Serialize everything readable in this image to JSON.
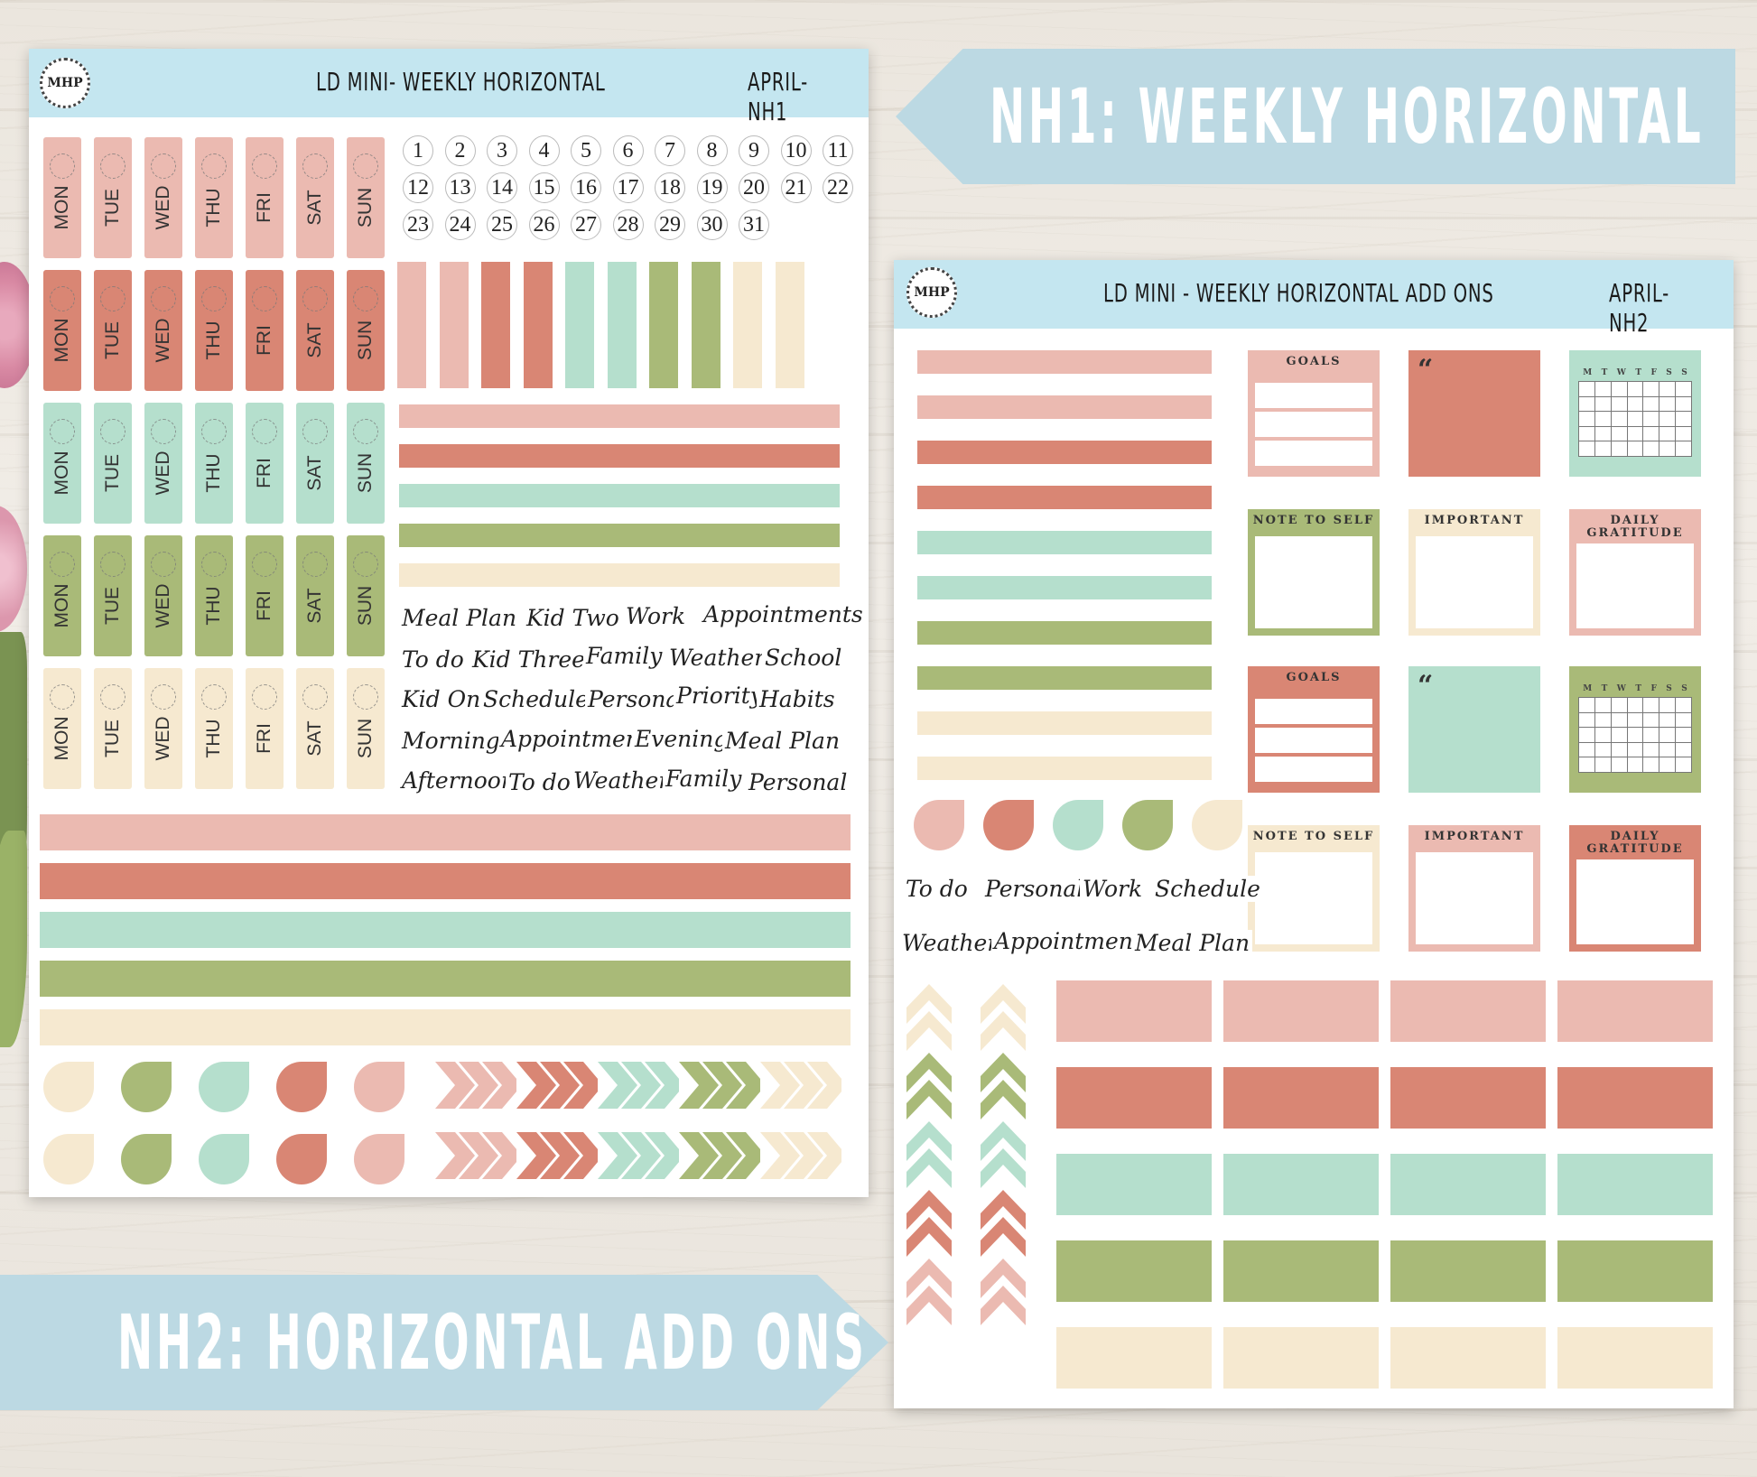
{
  "colors": {
    "pink": "#ebbab1",
    "coral": "#d98674",
    "mint": "#b5dfcd",
    "sage": "#a9ba78",
    "cream": "#f6e9d0",
    "header": "#c4e6f0",
    "banner": "#bcd9e3"
  },
  "sheet1": {
    "logo": "MHP",
    "title": "LD MINI- WEEKLY HORIZONTAL",
    "code": "APRIL-NH1",
    "days": [
      "MON",
      "TUE",
      "WED",
      "THU",
      "FRI",
      "SAT",
      "SUN"
    ],
    "dates": [
      "1",
      "2",
      "3",
      "4",
      "5",
      "6",
      "7",
      "8",
      "9",
      "10",
      "11",
      "12",
      "13",
      "14",
      "15",
      "16",
      "17",
      "18",
      "19",
      "20",
      "21",
      "22",
      "23",
      "24",
      "25",
      "26",
      "27",
      "28",
      "29",
      "30",
      "31"
    ],
    "words": [
      "Meal Plan",
      "Kid Two",
      "Work",
      "Appointments",
      "To do",
      "Kid Three",
      "Family",
      "Weather",
      "School",
      "Kid One",
      "Schedule",
      "Personal",
      "Priority",
      "Habits",
      "Morning",
      "Appointments",
      "Evening",
      "Meal Plan",
      "Afternoon",
      "To do",
      "Weather",
      "Family",
      "Personal"
    ]
  },
  "sheet2": {
    "logo": "MHP",
    "title": "LD MINI - WEEKLY HORIZONTAL ADD ONS",
    "code": "APRIL-NH2",
    "box_titles": {
      "goals": "GOALS",
      "note": "NOTE TO SELF",
      "important": "IMPORTANT",
      "gratitude": "DAILY GRATITUDE",
      "quote": "“"
    },
    "cal_days": [
      "M",
      "T",
      "W",
      "T",
      "F",
      "S",
      "S"
    ],
    "words": [
      "To do",
      "Personal",
      "Work",
      "Schedule",
      "Weather",
      "Appointments",
      "Meal Plan"
    ]
  },
  "banner_top": "NH1: WEEKLY HORIZONTAL",
  "banner_bottom": "NH2: HORIZONTAL ADD ONS"
}
